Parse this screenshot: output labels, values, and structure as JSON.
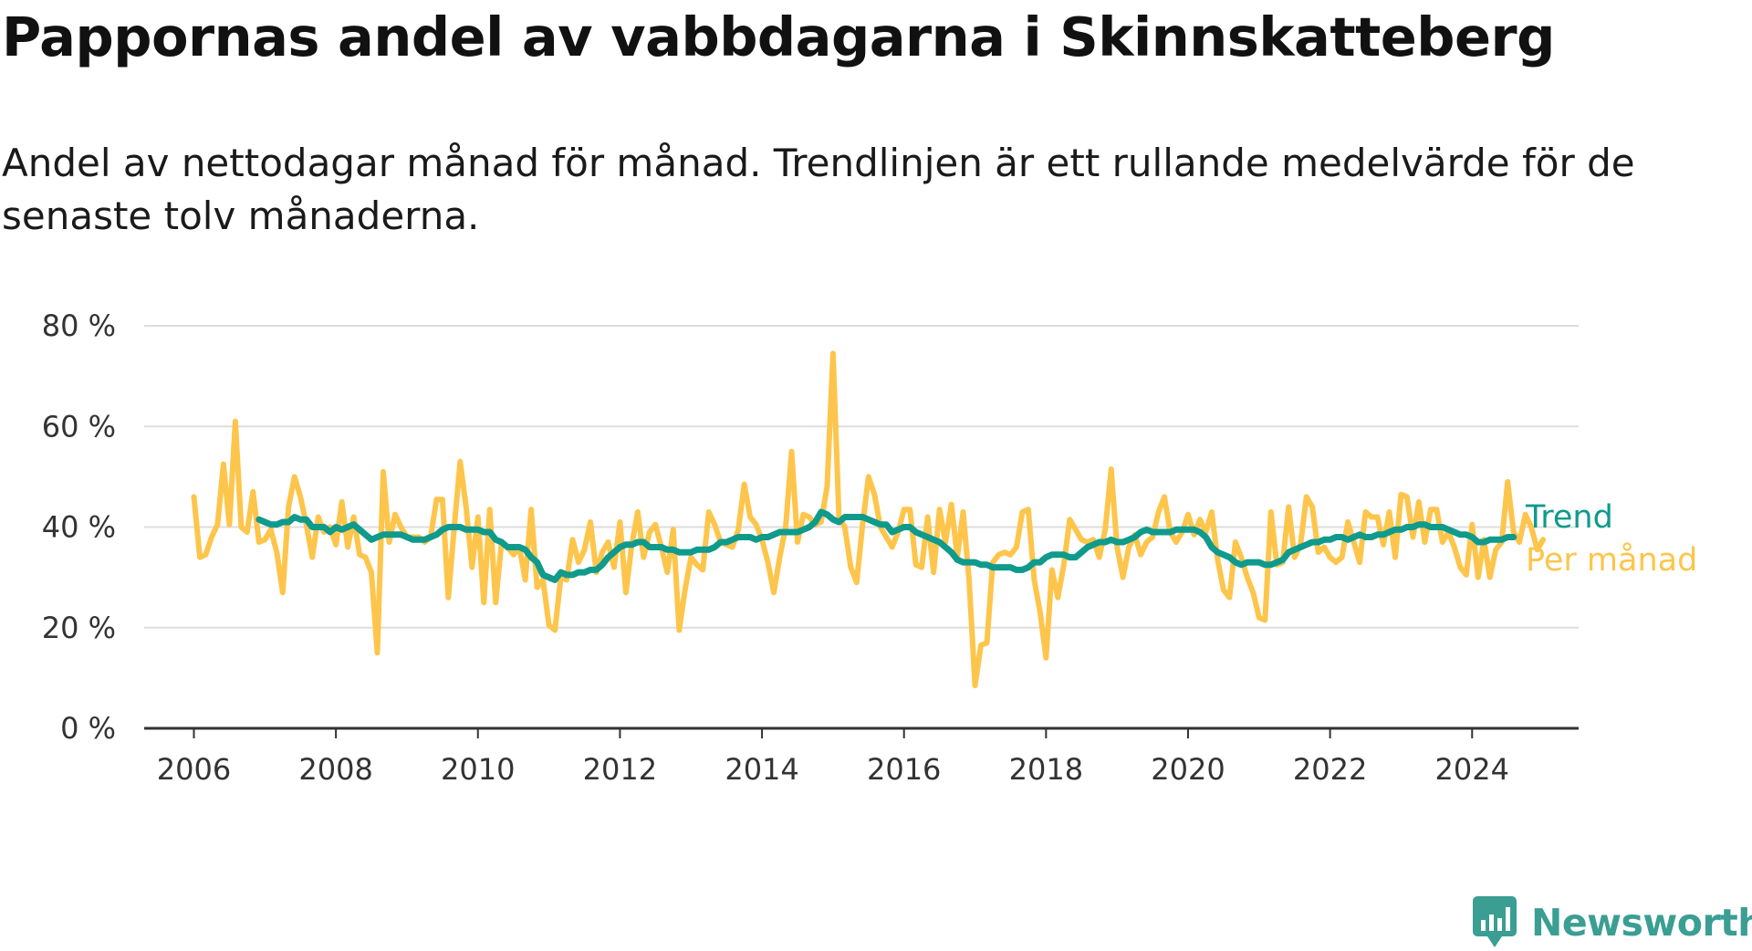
{
  "title": "Pappornas andel av vabbdagarna i Skinnskatteberg",
  "subtitle": "Andel av nettodagar månad för månad. Trendlinjen är ett rullande medelvärde för de senaste tolv månaderna.",
  "brand": {
    "name": "Newsworthy",
    "color": "#3a9e93"
  },
  "colors": {
    "trend": "#0f9a8c",
    "monthly": "#fdc54b",
    "grid": "#dddddd",
    "axis": "#333333"
  },
  "chart_data": {
    "type": "line",
    "x_unit": "year (decimal)",
    "y_unit": "%",
    "xlim": [
      2005.3,
      2025.5
    ],
    "ylim": [
      0,
      80
    ],
    "y_ticks": [
      0,
      20,
      40,
      60,
      80
    ],
    "y_tick_labels": [
      "0 %",
      "20 %",
      "40 %",
      "60 %",
      "80 %"
    ],
    "x_ticks": [
      2006,
      2008,
      2010,
      2012,
      2014,
      2016,
      2018,
      2020,
      2022,
      2024
    ],
    "x_tick_labels": [
      "2006",
      "2008",
      "2010",
      "2012",
      "2014",
      "2016",
      "2018",
      "2020",
      "2022",
      "2024"
    ],
    "grid": "horizontal",
    "legend_position": "right of line ends",
    "series": [
      {
        "name": "Per månad",
        "color": "#fdc54b",
        "x_start": 2006.0,
        "x_step": 0.0833333,
        "values": [
          46,
          34,
          34.5,
          38,
          40.5,
          52.5,
          40.5,
          61,
          40,
          39,
          47,
          37,
          37.5,
          39.5,
          35,
          27,
          44,
          50,
          46,
          40.5,
          34,
          42,
          39,
          40,
          36.5,
          45,
          36,
          42,
          34.5,
          34,
          31,
          15,
          51,
          37,
          42.5,
          40,
          38,
          38,
          38,
          37,
          38,
          45.5,
          45.5,
          26,
          40,
          53,
          44,
          32,
          42,
          25,
          43.5,
          25,
          37,
          36,
          34.5,
          36,
          29.5,
          43.5,
          28,
          29.5,
          20.5,
          19.5,
          30,
          29.5,
          37.5,
          33,
          35.5,
          41,
          31,
          35,
          37,
          32,
          41,
          27,
          36.5,
          43,
          34,
          39,
          40.5,
          36,
          31,
          39.5,
          19.5,
          27.5,
          34,
          32.5,
          31.5,
          43,
          40.5,
          37,
          36.5,
          36,
          39.5,
          48.5,
          42,
          40.5,
          37.5,
          33,
          27,
          34,
          40,
          55,
          37,
          42.5,
          42,
          40.5,
          41,
          48,
          74.5,
          42,
          40,
          32,
          29,
          40.5,
          50,
          46.5,
          40,
          38,
          36,
          39,
          43.5,
          43.5,
          32.5,
          32,
          42,
          31,
          43.5,
          37,
          44.5,
          34,
          43,
          29.5,
          8.5,
          16.5,
          17,
          33,
          34.5,
          35,
          34.5,
          36,
          43,
          43.5,
          29.5,
          23,
          14,
          31.5,
          26,
          32.5,
          41.5,
          39.5,
          37.5,
          37,
          37.5,
          34,
          39.5,
          51.5,
          36,
          30,
          36,
          38.5,
          34.5,
          37,
          38,
          43,
          46,
          39,
          37,
          39,
          42.5,
          38.5,
          41.5,
          39,
          43,
          33.5,
          27.5,
          26,
          37,
          34,
          30,
          27,
          22,
          21.5,
          43,
          32.5,
          33,
          44,
          34,
          36.5,
          46,
          44,
          35,
          36,
          34,
          33,
          34,
          41,
          37,
          33,
          43,
          42,
          42,
          36.5,
          43,
          34,
          46.5,
          46,
          38,
          45,
          37,
          43.5,
          43.5,
          37,
          39,
          36,
          32,
          30.5,
          40.5,
          30,
          37.5,
          30,
          35.5,
          37,
          49,
          39,
          37,
          42.5,
          40,
          35.5,
          37.5
        ]
      },
      {
        "name": "Trend",
        "color": "#0f9a8c",
        "x_start": 2006.917,
        "x_step": 0.0833333,
        "values": [
          41.5,
          41,
          40.5,
          40.5,
          41,
          41,
          42,
          41.5,
          41.5,
          40,
          40,
          40,
          39,
          40,
          39.5,
          40,
          40.5,
          39.5,
          38.5,
          37.5,
          38,
          38.5,
          38.5,
          38.5,
          38.5,
          38,
          37.5,
          37.5,
          37.5,
          38,
          38.5,
          39.5,
          40,
          40,
          40,
          39.5,
          39.5,
          39.5,
          39,
          39,
          37.5,
          37,
          36,
          36,
          36,
          35.5,
          34,
          33,
          30.5,
          30,
          29.5,
          31,
          30.5,
          30.5,
          31,
          31,
          31.5,
          31.5,
          32.5,
          34,
          35,
          36,
          36.5,
          36.5,
          37,
          37,
          36,
          36,
          36,
          35.5,
          35.5,
          35,
          35,
          35,
          35.5,
          35.5,
          35.5,
          36,
          37,
          37,
          37.5,
          38,
          38,
          38,
          37.5,
          38,
          38,
          38.5,
          39,
          39,
          39,
          39,
          39.5,
          40,
          41,
          43,
          42.5,
          41.5,
          41,
          42,
          42,
          42,
          42,
          41.5,
          41,
          40.5,
          40.5,
          39,
          39.5,
          40,
          40,
          39,
          38.5,
          38,
          37.5,
          37,
          36,
          35,
          33.5,
          33,
          33,
          33,
          32.5,
          32.5,
          32,
          32,
          32,
          32,
          31.5,
          31.5,
          32,
          33,
          33,
          34,
          34.5,
          34.5,
          34.5,
          34,
          34,
          35,
          36,
          36.5,
          37,
          37,
          37.5,
          37,
          37,
          37.5,
          38,
          39,
          39.5,
          39,
          39,
          39,
          39,
          39.5,
          39.5,
          39.5,
          39.5,
          39,
          38,
          36,
          35,
          34.5,
          34,
          33,
          32.5,
          33,
          33,
          33,
          32.5,
          32.5,
          33,
          33.5,
          35,
          35.5,
          36,
          36.5,
          37,
          37,
          37.5,
          37.5,
          38,
          38,
          37.5,
          38,
          38.5,
          38,
          38,
          38.5,
          38.5,
          39,
          39.5,
          39.5,
          40,
          40,
          40.5,
          40.5,
          40,
          40,
          40,
          39.5,
          39,
          38.5,
          38.5,
          38,
          37,
          37,
          37.5,
          37.5,
          37.5,
          38,
          38
        ]
      }
    ]
  }
}
